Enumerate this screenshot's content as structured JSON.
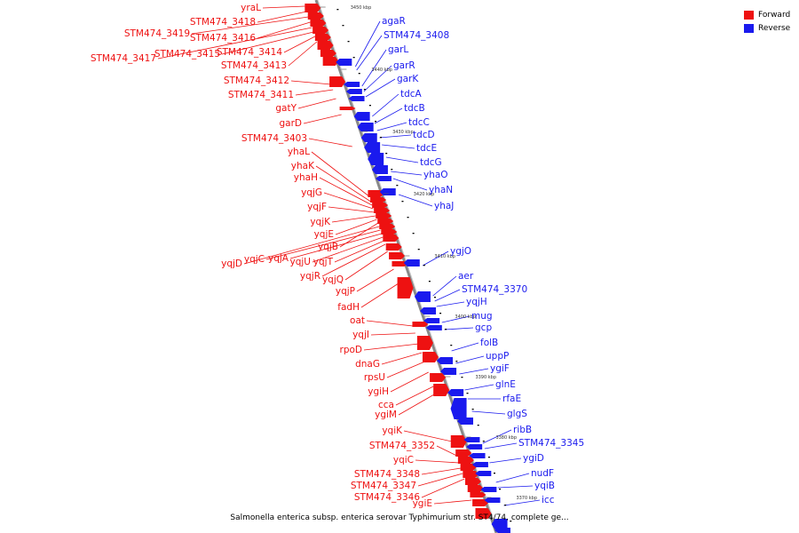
{
  "legend": {
    "forward_label": "Forward",
    "reverse_label": "Reverse",
    "forward_color": "#ee1111",
    "reverse_color": "#1a1aee"
  },
  "caption": "Salmonella enterica subsp. enterica serovar Typhimurium str. ST4/74, complete ge...",
  "scale_ticks": [
    "3450 kbp",
    "3440 kbp",
    "3430 kbp",
    "3420 kbp",
    "3410 kbp",
    "3400 kbp",
    "3390 kbp",
    "3380 kbp",
    "3370 kbp"
  ],
  "forward_genes": [
    "yraL",
    "STM474_3418",
    "STM474_3419",
    "STM474_3416",
    "STM474_3417",
    "STM474_3415",
    "STM474_3414",
    "STM474_3413",
    "STM474_3412",
    "STM474_3411",
    "gatY",
    "garD",
    "STM474_3403",
    "yhaL",
    "yhaK",
    "yhaH",
    "yqjG",
    "yqjF",
    "yqjK",
    "yqjE",
    "yqjB",
    "yqjD",
    "yqjC",
    "yqjA",
    "yqjU",
    "yqjT",
    "yqjR",
    "yqjQ",
    "yqjP",
    "fadH",
    "oat",
    "yqjI",
    "rpoD",
    "dnaG",
    "rpsU",
    "ygiH",
    "cca",
    "ygiM",
    "yqiK",
    "STM474_3352",
    "yqiC",
    "STM474_3348",
    "STM474_3347",
    "STM474_3346",
    "ygiE"
  ],
  "reverse_genes": [
    "agaR",
    "STM474_3408",
    "garL",
    "garR",
    "garK",
    "tdcA",
    "tdcB",
    "tdcC",
    "tdcD",
    "tdcE",
    "tdcG",
    "yhaO",
    "yhaN",
    "yhaJ",
    "ygjO",
    "aer",
    "STM474_3370",
    "yqjH",
    "mug",
    "gcp",
    "folB",
    "uppP",
    "ygiF",
    "glnE",
    "rfaE",
    "glgS",
    "ribB",
    "STM474_3345",
    "ygiD",
    "nudF",
    "yqiB",
    "icc"
  ]
}
